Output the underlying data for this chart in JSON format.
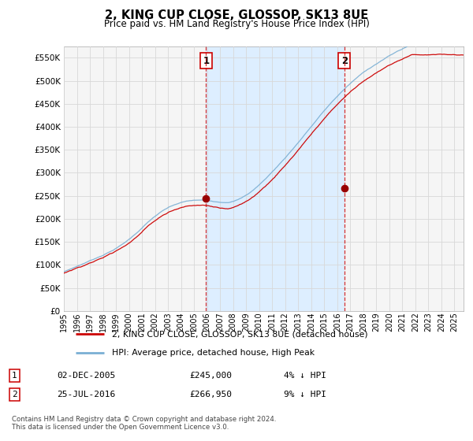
{
  "title": "2, KING CUP CLOSE, GLOSSOP, SK13 8UE",
  "subtitle": "Price paid vs. HM Land Registry's House Price Index (HPI)",
  "ytick_values": [
    0,
    50000,
    100000,
    150000,
    200000,
    250000,
    300000,
    350000,
    400000,
    450000,
    500000,
    550000
  ],
  "ylim": [
    0,
    575000
  ],
  "xlim_start": 1995.0,
  "xlim_end": 2025.7,
  "sale1_date": 2005.92,
  "sale1_price": 245000,
  "sale1_label": "1",
  "sale2_date": 2016.54,
  "sale2_price": 266950,
  "sale2_label": "2",
  "legend_line1": "2, KING CUP CLOSE, GLOSSOP, SK13 8UE (detached house)",
  "legend_line2": "HPI: Average price, detached house, High Peak",
  "sale1_ann_date": "02-DEC-2005",
  "sale1_ann_price": "£245,000",
  "sale1_ann_pct": "4% ↓ HPI",
  "sale2_ann_date": "25-JUL-2016",
  "sale2_ann_price": "£266,950",
  "sale2_ann_pct": "9% ↓ HPI",
  "footnote": "Contains HM Land Registry data © Crown copyright and database right 2024.\nThis data is licensed under the Open Government Licence v3.0.",
  "line_color_red": "#cc0000",
  "line_color_blue": "#7aafd4",
  "shade_color": "#ddeeff",
  "sale_marker_color": "#990000",
  "dashed_line_color": "#cc0000",
  "background_plot": "#f5f5f5",
  "background_fig": "#ffffff",
  "grid_color": "#d8d8d8",
  "xtick_years": [
    1995,
    1996,
    1997,
    1998,
    1999,
    2000,
    2001,
    2002,
    2003,
    2004,
    2005,
    2006,
    2007,
    2008,
    2009,
    2010,
    2011,
    2012,
    2013,
    2014,
    2015,
    2016,
    2017,
    2018,
    2019,
    2020,
    2021,
    2022,
    2023,
    2024,
    2025
  ]
}
